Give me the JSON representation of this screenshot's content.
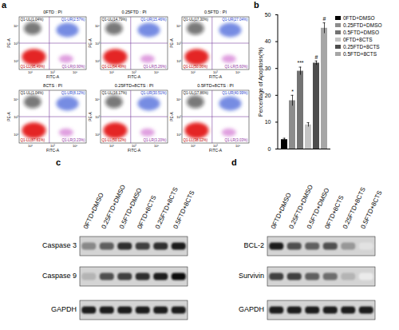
{
  "chart_data": {
    "type": "bar",
    "panel_label": "b",
    "ylabel": "Percentage of Apoptosis(%)",
    "categories": [
      "0FTD+DMSO",
      "0.25FTD+DMSO",
      "0.5FTD+DMSO",
      "0FTD+8CTS",
      "0.25FTD+8CTS",
      "0.5FTD+8CTS"
    ],
    "values": [
      3.5,
      18,
      29,
      9,
      32,
      45
    ],
    "errors": [
      0.5,
      2,
      1.5,
      0.8,
      0.8,
      2
    ],
    "colors": [
      "#000000",
      "#8c8c8c",
      "#737373",
      "#c4c4c4",
      "#4d4d4d",
      "#a6a6a6"
    ],
    "ylim": [
      0,
      50
    ],
    "yticks": [
      0,
      10,
      20,
      30,
      40,
      50
    ],
    "annotations": [
      {
        "category": "0.25FTD+DMSO",
        "text": "*"
      },
      {
        "category": "0.5FTD+DMSO",
        "text": "***"
      },
      {
        "category": "0.25FTD+8CTS",
        "text": "#"
      },
      {
        "category": "0.5FTD+8CTS",
        "text": "#"
      }
    ],
    "tick_labels": "y",
    "legend": "right"
  },
  "flow_cytometry": {
    "panel_label": "a",
    "xlabel": "FITC-A",
    "ylabel": "PE-A",
    "axis_ticks": [
      "10¹",
      "10³",
      "10⁵"
    ],
    "panels": [
      {
        "title": "0FTD : PI",
        "UL": "Q1-UL(1.04%)",
        "UR": "Q1-UR(2.57%)",
        "LL": "Q1-LL(95.49%)",
        "LR": "Q1-LR(0.90%)"
      },
      {
        "title": "0.25FTD : PI",
        "UL": "Q1-UL(14.79%)",
        "UR": "Q1-UR(15.46%)",
        "LL": "Q1-LL(64.49%)",
        "LR": "Q1-LR(5.26%)"
      },
      {
        "title": "0.5FTD : PI",
        "UL": "Q1-UL(17.30%)",
        "UR": "Q1-UR(27.04%)",
        "LL": "Q1-LL(50.06%)",
        "LR": "Q1-LR(5.60%)"
      },
      {
        "title": "8CTS : PI",
        "UL": "Q1-UL(1.04%)",
        "UR": "Q1-UR(8.12%)",
        "LL": "Q1-LL(87.61%)",
        "LR": "Q1-LR(3.23%)"
      },
      {
        "title": "0.25FTD+8CTS : PI",
        "UL": "Q1-UL(16.17%)",
        "UR": "Q1-UR(30.51%)",
        "LL": "Q1-LL(50.12%)",
        "LR": "Q1-LR(3.20%)"
      },
      {
        "title": "0.5FTD+8CTS : PI",
        "UL": "Q1-UL(17.86%)",
        "UR": "Q1-UR(40.99%)",
        "LL": "Q1-LL(38.12%)",
        "LR": "Q1-LR(3.03%)"
      }
    ]
  },
  "blots": [
    {
      "panel_label": "c",
      "lanes": [
        "0FTD+DMSO",
        "0.25FTD+DMSO",
        "0.5FTD+DMSO",
        "0FTD+8CTS",
        "0.25FTD+8CTS",
        "0.5FTD+8CTS"
      ],
      "bands": [
        {
          "name": "Caspase 3",
          "intensity": [
            0.55,
            0.7,
            0.85,
            0.8,
            0.85,
            0.9
          ]
        },
        {
          "name": "Caspase 9",
          "intensity": [
            0.4,
            0.75,
            0.8,
            0.85,
            0.9,
            0.95
          ]
        },
        {
          "name": "GAPDH",
          "intensity": [
            0.9,
            0.9,
            0.9,
            0.9,
            0.9,
            0.9
          ]
        }
      ]
    },
    {
      "panel_label": "d",
      "lanes": [
        "0FTD+DMSO",
        "0.25FTD+DMSO",
        "0.5FTD+DMSO",
        "0FTD+8CTS",
        "0.25FTD+8CTS",
        "0.5FTD+8CTS"
      ],
      "bands": [
        {
          "name": "BCL-2",
          "intensity": [
            0.9,
            0.75,
            0.7,
            0.75,
            0.5,
            0.2
          ]
        },
        {
          "name": "Survivin",
          "intensity": [
            0.8,
            0.8,
            0.7,
            0.65,
            0.4,
            0.15
          ]
        },
        {
          "name": "GAPDH",
          "intensity": [
            0.9,
            0.9,
            0.9,
            0.9,
            0.9,
            0.9
          ]
        }
      ]
    }
  ]
}
